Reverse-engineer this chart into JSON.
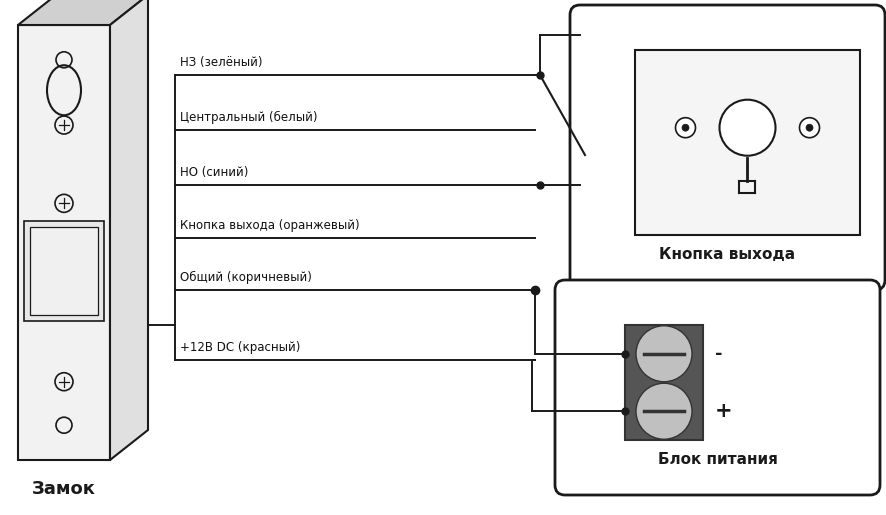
{
  "bg_color": "#ffffff",
  "lc": "#1a1a1a",
  "wire_labels": [
    "НЗ (зелёный)",
    "Центральный (белый)",
    "НО (синий)",
    "Кнопка выхода (оранжевый)",
    "Общий (коричневый)",
    "+12В DC (красный)"
  ],
  "label_lock": "Замок",
  "label_button": "Кнопка выхода",
  "label_psu": "Блок питания",
  "figsize": [
    8.87,
    5.15
  ],
  "dpi": 100
}
